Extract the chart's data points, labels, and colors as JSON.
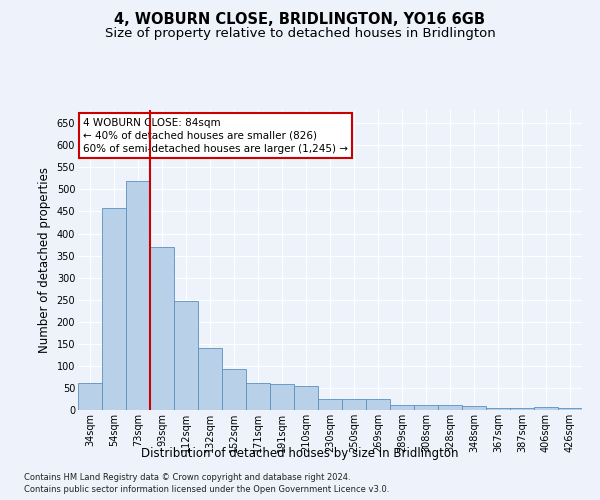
{
  "title": "4, WOBURN CLOSE, BRIDLINGTON, YO16 6GB",
  "subtitle": "Size of property relative to detached houses in Bridlington",
  "xlabel": "Distribution of detached houses by size in Bridlington",
  "ylabel": "Number of detached properties",
  "footer_line1": "Contains HM Land Registry data © Crown copyright and database right 2024.",
  "footer_line2": "Contains public sector information licensed under the Open Government Licence v3.0.",
  "annotation_title": "4 WOBURN CLOSE: 84sqm",
  "annotation_line1": "← 40% of detached houses are smaller (826)",
  "annotation_line2": "60% of semi-detached houses are larger (1,245) →",
  "bar_color": "#b8d0e8",
  "bar_edge_color": "#5a90c0",
  "vline_color": "#cc0000",
  "categories": [
    "34sqm",
    "54sqm",
    "73sqm",
    "93sqm",
    "112sqm",
    "132sqm",
    "152sqm",
    "171sqm",
    "191sqm",
    "210sqm",
    "230sqm",
    "250sqm",
    "269sqm",
    "289sqm",
    "308sqm",
    "328sqm",
    "348sqm",
    "367sqm",
    "387sqm",
    "406sqm",
    "426sqm"
  ],
  "values": [
    62,
    457,
    519,
    370,
    248,
    140,
    93,
    62,
    58,
    55,
    26,
    26,
    26,
    11,
    12,
    11,
    8,
    5,
    5,
    7,
    4
  ],
  "ylim": [
    0,
    680
  ],
  "yticks": [
    0,
    50,
    100,
    150,
    200,
    250,
    300,
    350,
    400,
    450,
    500,
    550,
    600,
    650
  ],
  "background_color": "#eef2fb",
  "plot_bg_color": "#eef2fb",
  "annotation_box_color": "#ffffff",
  "annotation_box_edge": "#cc0000",
  "title_fontsize": 10.5,
  "subtitle_fontsize": 9.5,
  "tick_fontsize": 7,
  "ylabel_fontsize": 8.5,
  "xlabel_fontsize": 8.5,
  "footer_fontsize": 6.0
}
